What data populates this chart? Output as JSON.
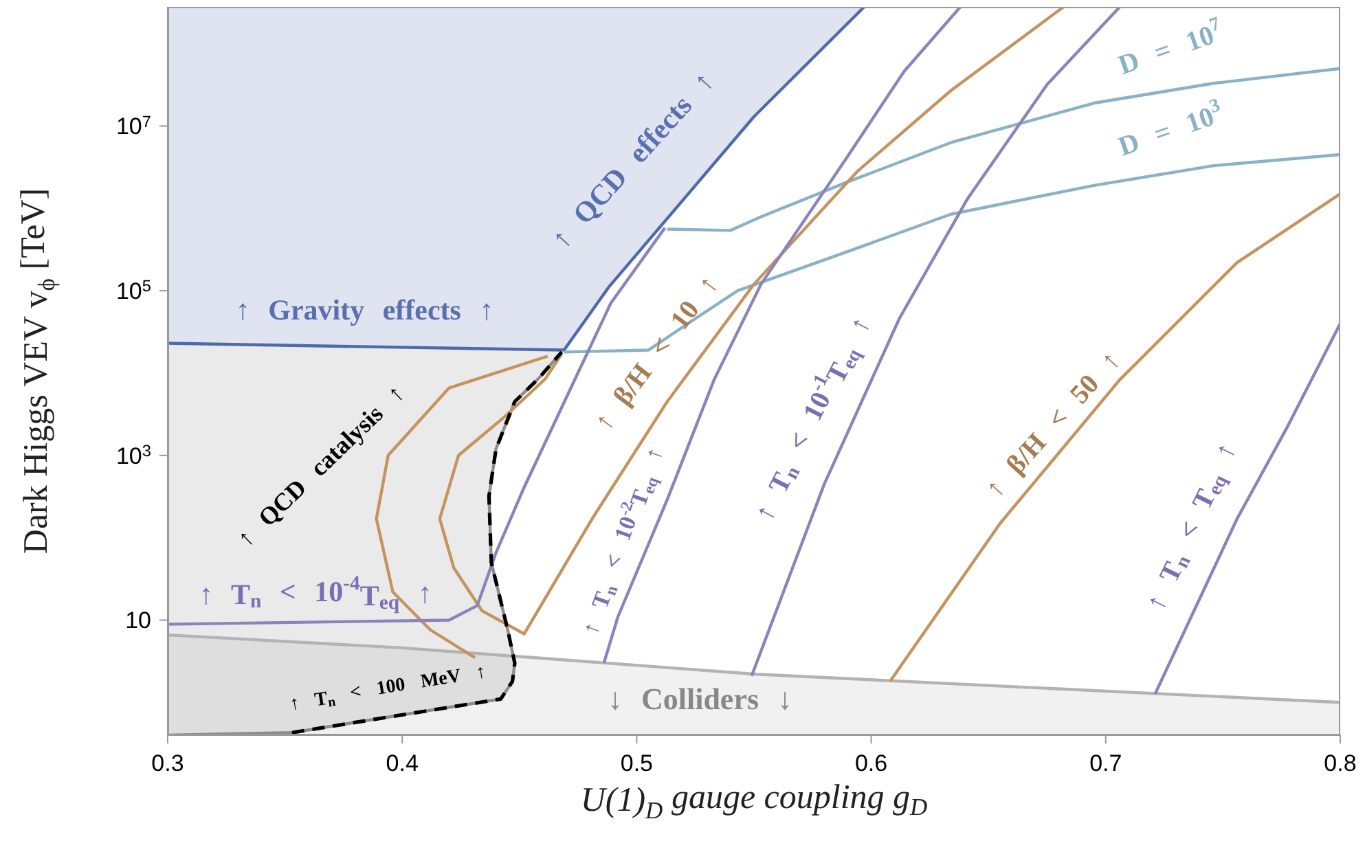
{
  "chart_data": {
    "type": "line",
    "xlabel": "U(1)$_{D}$ gauge coupling g$_{D}$",
    "ylabel": "Dark Higgs VEV v$_{ϕ}$ [TeV]",
    "xlim": [
      0.3,
      0.8
    ],
    "xticks": [
      0.3,
      0.4,
      0.5,
      0.6,
      0.7,
      0.8
    ],
    "ylim": [
      0.4,
      280000000
    ],
    "yticks": [
      10,
      {
        "value": 1000,
        "label": "10$^{3}$"
      },
      {
        "value": 100000,
        "label": "10$^{5}$"
      },
      {
        "value": 10000000,
        "label": "10$^{7}$"
      }
    ],
    "log": "y",
    "marker": "none",
    "series": [
      {
        "color": "#b3b3b3",
        "x": [
          0.3,
          0.4,
          0.551,
          0.8
        ],
        "values": [
          6.6,
          4.6,
          2.2,
          1.0
        ],
        "lower": [
          0.4,
          0.4,
          0.4,
          0.4
        ],
        "upper": [
          6.6,
          4.6,
          2.2,
          1.0
        ]
      },
      {
        "color": "#8c8c8c",
        "x": [
          0.3,
          0.353,
          0.442,
          0.447,
          0.448,
          0.445,
          0.438,
          0.437,
          0.44,
          0.448,
          0.458,
          0.468
        ],
        "values": [
          0.4,
          0.43,
          1.1,
          1.8,
          3.0,
          7.6,
          50,
          320,
          1200,
          4500,
          8500,
          18000
        ],
        "lower": [
          0.4,
          0.43,
          1.1,
          1.8,
          3.0,
          7.6,
          50,
          320,
          1200,
          4500,
          8500,
          18000
        ],
        "upper": [
          23000,
          21000,
          19500,
          19500,
          19500,
          19500,
          19500,
          19500,
          19500,
          19500,
          19000,
          19000
        ]
      },
      {
        "color": "#4f6aaa",
        "x": [
          0.3,
          0.469,
          0.488,
          0.55,
          0.597
        ],
        "values": [
          23000,
          19000,
          110000,
          13000000,
          280000000
        ],
        "lower": [
          23000,
          19000,
          110000,
          13000000,
          280000000
        ],
        "upper": [
          280000000,
          280000000,
          280000000,
          280000000,
          280000000
        ]
      },
      {
        "color": "#8ab1c6",
        "x": [
          0.513,
          0.54,
          0.553,
          0.59,
          0.634,
          0.695,
          0.746,
          0.8
        ],
        "values": [
          560000,
          540000,
          790000,
          2100000,
          6300000,
          19000000,
          33000000,
          50000000
        ]
      },
      {
        "color": "#8ab1c6",
        "x": [
          0.469,
          0.505,
          0.523,
          0.543,
          0.584,
          0.634,
          0.695,
          0.746,
          0.8
        ],
        "values": [
          18000,
          19000,
          42000,
          100000,
          260000,
          850000,
          1900000,
          3300000,
          4500000
        ]
      },
      {
        "color": "#c4935e",
        "x": [
          0.462,
          0.42,
          0.394,
          0.389,
          0.396,
          0.412,
          0.431
        ],
        "values": [
          16000,
          6600,
          1000,
          170,
          22,
          7.6,
          3.5
        ]
      },
      {
        "color": "#c4935e",
        "x": [
          0.468,
          0.461,
          0.444,
          0.424,
          0.416,
          0.422,
          0.434,
          0.452,
          0.481,
          0.513,
          0.55,
          0.594,
          0.634,
          0.682
        ],
        "values": [
          17000,
          8500,
          3000,
          1000,
          170,
          43,
          13,
          6.8,
          170,
          4500,
          120000,
          2800000,
          27000000,
          280000000
        ]
      },
      {
        "color": "#c4935e",
        "x": [
          0.608,
          0.655,
          0.706,
          0.756,
          0.8
        ],
        "values": [
          1.8,
          150,
          8300,
          220000,
          1500000
        ]
      },
      {
        "color": "#8b84bb",
        "x": [
          0.3,
          0.42,
          0.432,
          0.44,
          0.452,
          0.471,
          0.489,
          0.512
        ],
        "values": [
          8.9,
          10,
          15,
          66,
          410,
          5800,
          71000,
          580000
        ]
      },
      {
        "color": "#8b84bb",
        "x": [
          0.486,
          0.492,
          0.513,
          0.533,
          0.553,
          0.59,
          0.614,
          0.638
        ],
        "values": [
          3.0,
          11,
          290,
          8300,
          120000,
          4300000,
          46000000,
          280000000
        ]
      },
      {
        "color": "#8b84bb",
        "x": [
          0.549,
          0.58,
          0.612,
          0.641,
          0.675,
          0.706
        ],
        "values": [
          2.1,
          450,
          46000,
          1300000,
          32000000,
          280000000
        ]
      },
      {
        "color": "#8b84bb",
        "x": [
          0.721,
          0.756,
          0.777,
          0.8
        ],
        "values": [
          1.26,
          170,
          2100,
          40000
        ]
      },
      {
        "color": "#000000",
        "line_style": "dashed",
        "x": [
          0.353,
          0.442,
          0.447,
          0.448,
          0.445,
          0.438,
          0.437,
          0.44,
          0.448,
          0.458,
          0.468
        ],
        "values": [
          0.43,
          1.1,
          1.8,
          3.0,
          7.6,
          50,
          320,
          1200,
          4500,
          8500,
          18000
        ]
      }
    ],
    "annotations": [
      "↑ Gravity effects ↑",
      "↑ QCD effects ↑",
      "↑ QCD catalysis ↑",
      "↑ T$_{n}$ < 10$^{-4}$T$_{eq}$ ↑",
      "↑ T$_{n}$ < 100 MeV ↑",
      "↓ Colliders ↓",
      "↑ β/H < 10 ↑",
      "↑ T$_{n}$ < 10$^{-2}$T$_{eq}$ ↑",
      "↑ T$_{n}$ < 10$^{-1}$T$_{eq}$ ↑",
      "↑ β/H < 50 ↑",
      "↑ T$_{n}$ < T$_{eq}$ ↑",
      "D = 10$^{7}$",
      "D = 10$^{3}$"
    ]
  }
}
